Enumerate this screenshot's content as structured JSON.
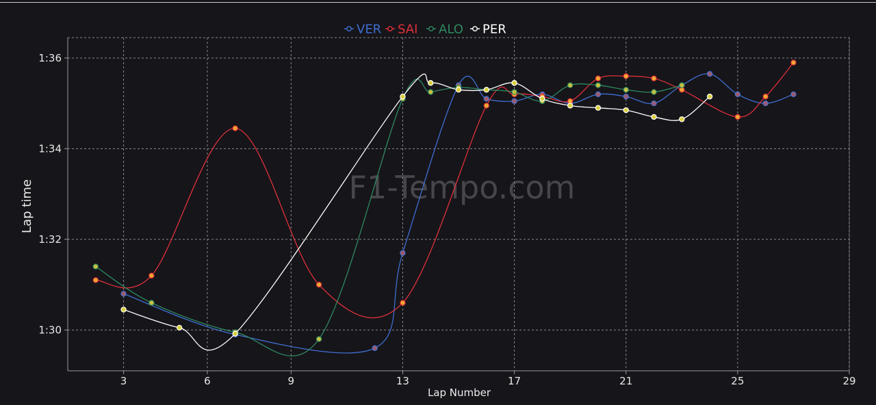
{
  "watermark": "F1-Tempo.com",
  "chart_data": {
    "type": "line",
    "xlabel": "Lap Number",
    "ylabel": "Lap time",
    "x_ticks": [
      3,
      6,
      9,
      13,
      17,
      21,
      25,
      29
    ],
    "y_ticks": [
      {
        "value": 90,
        "label": "1:30"
      },
      {
        "value": 92,
        "label": "1:32"
      },
      {
        "value": 94,
        "label": "1:34"
      },
      {
        "value": 96,
        "label": "1:36"
      }
    ],
    "xlim": [
      1.0,
      29.0
    ],
    "ylim": [
      89.1,
      96.45
    ],
    "grid": true,
    "legend_position": "top-center",
    "series": [
      {
        "name": "VER",
        "color": "#3f6fd1",
        "marker_fill": "#a05a6a",
        "points": [
          [
            3,
            90.8
          ],
          [
            7,
            89.9
          ],
          [
            12,
            89.6
          ],
          [
            13,
            91.7
          ],
          [
            15,
            95.4
          ],
          [
            16,
            95.1
          ],
          [
            17,
            95.05
          ],
          [
            18,
            95.2
          ],
          [
            19,
            95.0
          ],
          [
            20,
            95.2
          ],
          [
            21,
            95.15
          ],
          [
            22,
            95.0
          ],
          [
            23,
            95.4
          ],
          [
            24,
            95.65
          ],
          [
            25,
            95.2
          ],
          [
            26,
            95.0
          ],
          [
            27,
            95.2
          ]
        ]
      },
      {
        "name": "SAI",
        "color": "#e0303a",
        "marker_fill": "#f2a830",
        "points": [
          [
            2,
            91.1
          ],
          [
            4,
            91.2
          ],
          [
            7,
            94.45
          ],
          [
            10,
            91.0
          ],
          [
            13,
            90.6
          ],
          [
            16,
            94.95
          ],
          [
            17,
            95.2
          ],
          [
            18,
            95.15
          ],
          [
            19,
            95.05
          ],
          [
            20,
            95.55
          ],
          [
            21,
            95.6
          ],
          [
            22,
            95.55
          ],
          [
            23,
            95.3
          ],
          [
            25,
            94.7
          ],
          [
            26,
            95.15
          ],
          [
            27,
            95.9
          ]
        ]
      },
      {
        "name": "ALO",
        "color": "#2e8a60",
        "marker_fill": "#c8c040",
        "points": [
          [
            2,
            91.4
          ],
          [
            4,
            90.6
          ],
          [
            7,
            89.95
          ],
          [
            10,
            89.8
          ],
          [
            13,
            95.1
          ],
          [
            14,
            95.25
          ],
          [
            15,
            95.35
          ],
          [
            16,
            95.3
          ],
          [
            17,
            95.25
          ],
          [
            18,
            95.05
          ],
          [
            19,
            95.4
          ],
          [
            20,
            95.4
          ],
          [
            21,
            95.3
          ],
          [
            22,
            95.25
          ],
          [
            23,
            95.4
          ]
        ]
      },
      {
        "name": "PER",
        "color": "#ffffff",
        "marker_fill": "#d8cf3a",
        "points": [
          [
            3,
            90.45
          ],
          [
            5,
            90.05
          ],
          [
            7,
            89.92
          ],
          [
            13,
            95.15
          ],
          [
            14,
            95.45
          ],
          [
            15,
            95.3
          ],
          [
            16,
            95.3
          ],
          [
            17,
            95.45
          ],
          [
            18,
            95.1
          ],
          [
            19,
            94.95
          ],
          [
            20,
            94.9
          ],
          [
            21,
            94.85
          ],
          [
            22,
            94.7
          ],
          [
            23,
            94.65
          ],
          [
            24,
            95.15
          ]
        ]
      }
    ]
  }
}
